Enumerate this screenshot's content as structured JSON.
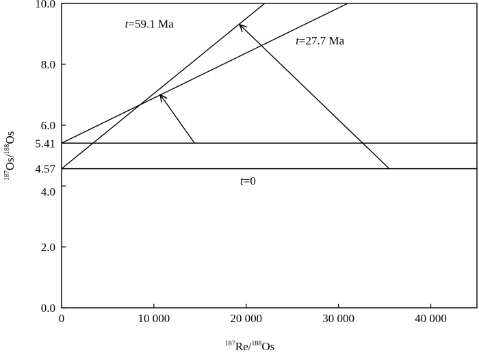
{
  "chart_data": {
    "type": "line",
    "title": "",
    "xlabel_parts": {
      "num_sup": "187",
      "num": "Re/",
      "den_sup": "188",
      "den": "Os"
    },
    "ylabel_parts": {
      "num_sup": "187",
      "num": "Os/",
      "den_sup": "188",
      "den": "Os"
    },
    "xlim": [
      0,
      45000
    ],
    "ylim": [
      0,
      10
    ],
    "x_ticks": [
      {
        "value": 0,
        "label": "0"
      },
      {
        "value": 10000,
        "label": "10 000"
      },
      {
        "value": 20000,
        "label": "20 000"
      },
      {
        "value": 30000,
        "label": "30 000"
      },
      {
        "value": 40000,
        "label": "40 000"
      }
    ],
    "y_ticks": [
      {
        "value": 0,
        "label": "0.0"
      },
      {
        "value": 2,
        "label": "2.0"
      },
      {
        "value": 4,
        "label": "4.0"
      },
      {
        "value": 6,
        "label": "6.0"
      },
      {
        "value": 8,
        "label": "8.0"
      },
      {
        "value": 10,
        "label": "10.0"
      }
    ],
    "y_marks": [
      {
        "value": 4.57,
        "label": "4.57"
      },
      {
        "value": 5.41,
        "label": "5.41"
      }
    ],
    "grid": false,
    "series": [
      {
        "x": [
          0,
          45000
        ],
        "y": [
          4.57,
          4.57
        ]
      },
      {
        "x": [
          0,
          45000
        ],
        "y": [
          5.41,
          5.41
        ]
      },
      {
        "x": [
          0,
          22000
        ],
        "y": [
          4.57,
          10
        ]
      },
      {
        "x": [
          0,
          31000
        ],
        "y": [
          5.41,
          10
        ]
      }
    ],
    "arrows": [
      {
        "from": [
          35500,
          4.57
        ],
        "to": [
          19300,
          9.3
        ]
      },
      {
        "from": [
          14400,
          5.41
        ],
        "to": [
          10700,
          7.0
        ]
      }
    ],
    "annotations": [
      {
        "italic": "t",
        "text": "=59.1 Ma",
        "x": 9500,
        "y": 9.2
      },
      {
        "italic": "t",
        "text": "=27.7 Ma",
        "x": 28000,
        "y": 8.65
      },
      {
        "italic": "t",
        "text": "=0",
        "x": 20200,
        "y": 4.05
      }
    ]
  }
}
